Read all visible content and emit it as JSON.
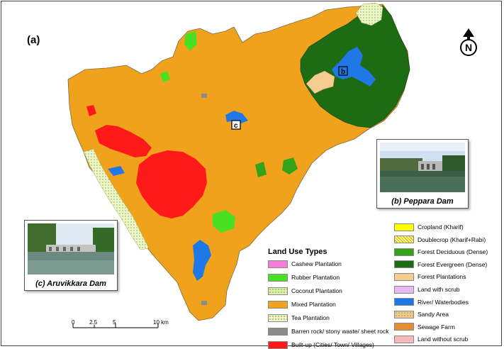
{
  "panel_label": "(a)",
  "north_arrow": {
    "letter": "N"
  },
  "photos": {
    "peppara": {
      "caption": "(b) Peppara Dam"
    },
    "aruvikkara": {
      "caption": "(c) Aruvikkara Dam"
    }
  },
  "map_markers": {
    "b": "b",
    "c": "c"
  },
  "legend": {
    "title": "Land Use Types",
    "left_items": [
      {
        "label": "Cashew Plantation",
        "color": "#f57fd6",
        "pattern": "solid"
      },
      {
        "label": "Rubber Plantation",
        "color": "#49e021",
        "pattern": "solid"
      },
      {
        "label": "Coconut Plantation",
        "color": "#d9f2a6",
        "pattern": "dots"
      },
      {
        "label": "Mixed Plantation",
        "color": "#f0a21d",
        "pattern": "solid"
      },
      {
        "label": "Tea Plantation",
        "color": "#f0f6c4",
        "pattern": "dots"
      },
      {
        "label": "Barren rock/ stony waste/ sheet rock",
        "color": "#8c8c8c",
        "pattern": "solid"
      },
      {
        "label": "Built-up (Cities/ Town/ Villages)",
        "color": "#ff1a1a",
        "pattern": "solid"
      }
    ],
    "right_items": [
      {
        "label": "Cropland (Kharif)",
        "color": "#ffff00",
        "pattern": "solid"
      },
      {
        "label": "Doublecrop (Kharif+Rabi)",
        "color": "#ffff7a",
        "pattern": "hatch"
      },
      {
        "label": "Forest Deciduous (Dense)",
        "color": "#33a318",
        "pattern": "solid"
      },
      {
        "label": "Forest Evergreen (Dense)",
        "color": "#1d6b12",
        "pattern": "solid"
      },
      {
        "label": "Forest Plantations",
        "color": "#f7cc8f",
        "pattern": "solid"
      },
      {
        "label": "Land with scrub",
        "color": "#e8b8f2",
        "pattern": "solid"
      },
      {
        "label": "River/ Waterbodies",
        "color": "#1f78e6",
        "pattern": "solid"
      },
      {
        "label": "Sandy Area",
        "color": "#f6c98a",
        "pattern": "dots"
      },
      {
        "label": "Sewage Farm",
        "color": "#f08a3c",
        "pattern": "hatch"
      },
      {
        "label": "Land without scrub",
        "color": "#f7b8b8",
        "pattern": "solid"
      }
    ]
  },
  "scale_bar": {
    "labels": [
      "0",
      "2.5",
      "5",
      "10 km"
    ]
  }
}
